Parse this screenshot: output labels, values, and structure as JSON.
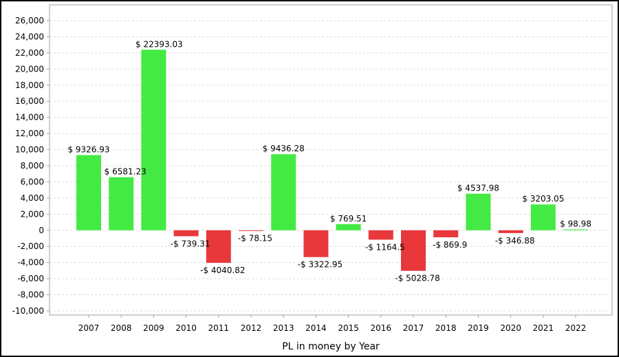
{
  "chart_data": {
    "type": "bar",
    "title": "",
    "xlabel": "PL in money by Year",
    "ylabel": "",
    "ylim": [
      -10000,
      26000
    ],
    "y_ticks": [
      "26,000",
      "24,000",
      "22,000",
      "20,000",
      "18,000",
      "16,000",
      "14,000",
      "12,000",
      "10,000",
      "8,000",
      "6,000",
      "4,000",
      "2,000",
      "0",
      "-2,000",
      "-4,000",
      "-6,000",
      "-8,000",
      "-10,000"
    ],
    "categories": [
      "2007",
      "2008",
      "2009",
      "2010",
      "2011",
      "2012",
      "2013",
      "2014",
      "2015",
      "2016",
      "2017",
      "2018",
      "2019",
      "2020",
      "2021",
      "2022"
    ],
    "values": [
      9326.93,
      6581.23,
      22393.03,
      -739.31,
      -4040.82,
      -78.15,
      9436.28,
      -3322.95,
      769.51,
      -1164.5,
      -5028.78,
      -869.9,
      4537.98,
      -346.88,
      3203.05,
      98.98
    ],
    "data_labels": [
      "$ 9326.93",
      "$ 6581.23",
      "$ 22393.03",
      "-$ 739.31",
      "-$ 4040.82",
      "-$ 78.15",
      "$ 9436.28",
      "-$ 3322.95",
      "$ 769.51",
      "-$ 1164.5",
      "-$ 5028.78",
      "-$ 869.9",
      "$ 4537.98",
      "-$ 346.88",
      "$ 3203.05",
      "$ 98.98"
    ],
    "grid": true,
    "legend": "none",
    "colors": {
      "positive": "#44ea44",
      "negative": "#e8383c",
      "grid": "#d9d9d9",
      "axis": "#a0a0a0"
    }
  }
}
